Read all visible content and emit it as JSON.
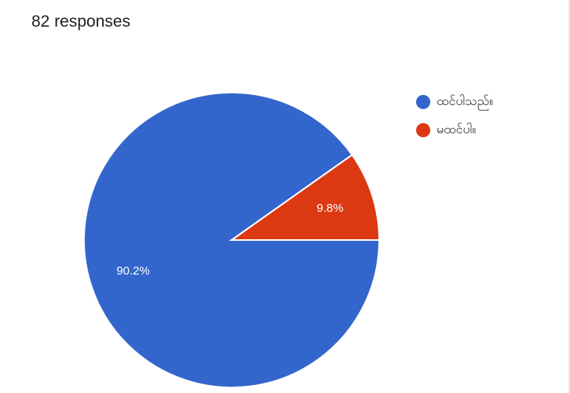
{
  "header": {
    "response_count": "82 responses"
  },
  "chart_data": {
    "type": "pie",
    "categories": [
      "ထင်ပါသည်။",
      "မထင်ပါ။"
    ],
    "values": [
      90.2,
      9.8
    ],
    "data_labels": [
      "90.2%",
      "9.8%"
    ],
    "colors": [
      "#3366cc",
      "#dc3912"
    ],
    "legend_position": "right"
  }
}
